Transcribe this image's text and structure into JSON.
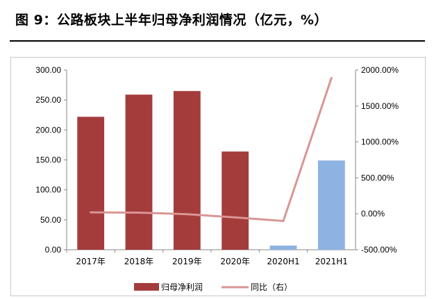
{
  "page": {
    "title": "图 9：公路板块上半年归母净利润情况（亿元，%）"
  },
  "chart_data": {
    "type": "bar",
    "categories": [
      "2017年",
      "2018年",
      "2019年",
      "2020年",
      "2020H1",
      "2021H1"
    ],
    "series": [
      {
        "name": "归母净利润",
        "kind": "bar",
        "axis": "left",
        "values": [
          222,
          259,
          265,
          164,
          7,
          149
        ],
        "colors": [
          "#a43c3c",
          "#a43c3c",
          "#a43c3c",
          "#a43c3c",
          "#8db3e2",
          "#8db3e2"
        ]
      },
      {
        "name": "同比（右）",
        "kind": "line",
        "axis": "right",
        "values": [
          20,
          17,
          -5,
          -50,
          -100,
          1890
        ],
        "color": "#d99594"
      }
    ],
    "y_left": {
      "min": 0,
      "max": 300,
      "step": 50,
      "tick_labels": [
        "0.00",
        "50.00",
        "100.00",
        "150.00",
        "200.00",
        "250.00",
        "300.00"
      ]
    },
    "y_right": {
      "min": -500,
      "max": 2000,
      "step": 500,
      "tick_labels": [
        "-500.00%",
        "0.00%",
        "500.00%",
        "1000.00%",
        "1500.00%",
        "2000.00%"
      ]
    },
    "grid": false,
    "legend_position": "bottom"
  }
}
